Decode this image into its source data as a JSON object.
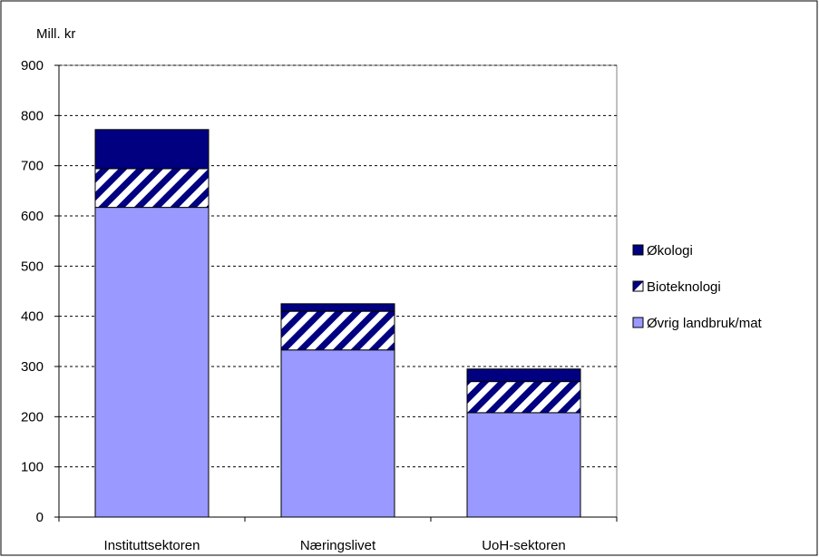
{
  "chart_data": {
    "type": "bar",
    "stacked": true,
    "title": "",
    "ylabel": "Mill. kr",
    "xlabel": "",
    "categories": [
      "Instituttsektoren",
      "Næringslivet",
      "UoH-sektoren"
    ],
    "series": [
      {
        "name": "Øvrig landbruk/mat",
        "values": [
          617,
          333,
          208
        ],
        "color": "#9999ff",
        "pattern": "solid"
      },
      {
        "name": "Bioteknologi",
        "values": [
          77,
          77,
          62
        ],
        "color": "#000080",
        "pattern": "diagonal-stripes"
      },
      {
        "name": "Økologi",
        "values": [
          78,
          15,
          25
        ],
        "color": "#000080",
        "pattern": "solid"
      }
    ],
    "ylim": [
      0,
      900
    ],
    "yticks": [
      0,
      100,
      200,
      300,
      400,
      500,
      600,
      700,
      800,
      900
    ],
    "grid": "horizontal dashed",
    "legend_position": "right"
  }
}
